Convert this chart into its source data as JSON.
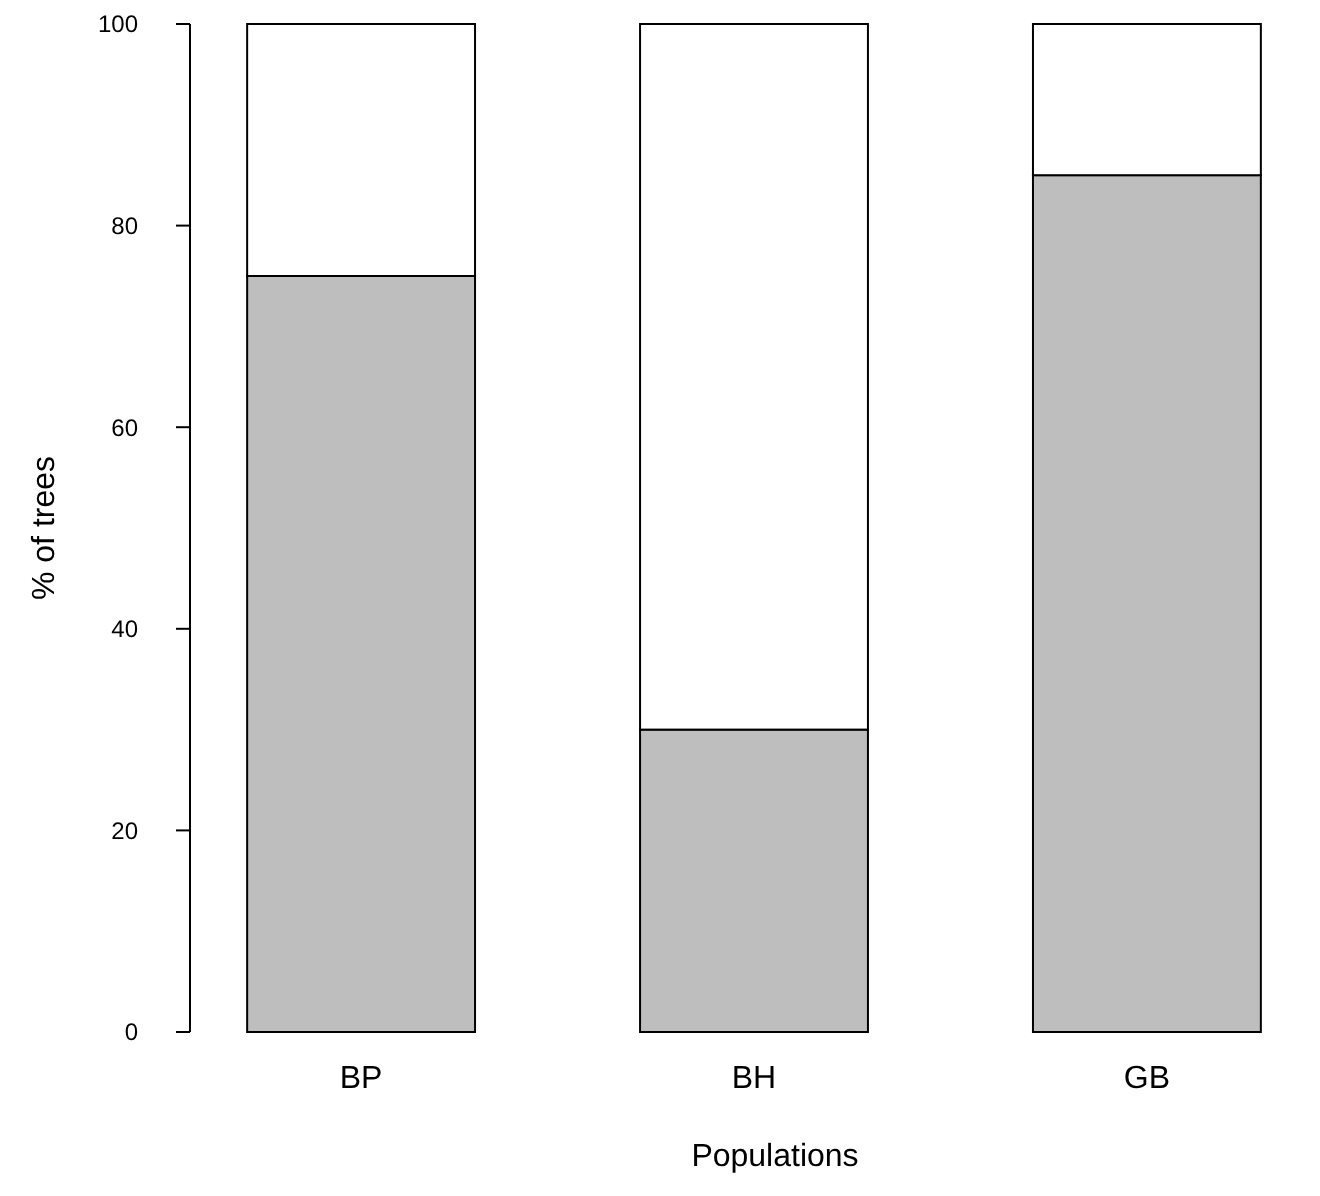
{
  "chart_data": {
    "type": "bar",
    "stacked": true,
    "xlabel": "Populations",
    "ylabel": "% of trees",
    "categories": [
      "BP",
      "BH",
      "GB"
    ],
    "series": [
      {
        "color": "#bebebe",
        "values": [
          75,
          30,
          85
        ]
      },
      {
        "color": "#ffffff",
        "values": [
          25,
          70,
          15
        ]
      }
    ],
    "ylim": [
      0,
      100
    ],
    "yticks": [
      0,
      20,
      40,
      60,
      80,
      100
    ],
    "grid": false
  }
}
